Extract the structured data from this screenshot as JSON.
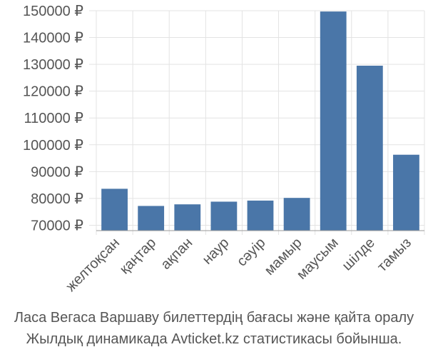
{
  "chart_data": {
    "type": "bar",
    "categories": [
      "желтоқсан",
      "қаңтар",
      "ақпан",
      "наур",
      "сәуір",
      "мамыр",
      "маусым",
      "шілде",
      "тамыз"
    ],
    "values": [
      83600,
      77200,
      77800,
      78800,
      79200,
      80200,
      149700,
      129500,
      96300
    ],
    "y_ticks": [
      70000,
      80000,
      90000,
      100000,
      110000,
      120000,
      130000,
      140000,
      150000
    ],
    "y_tick_labels": [
      "70000 ₽",
      "80000 ₽",
      "90000 ₽",
      "100000 ₽",
      "110000 ₽",
      "120000 ₽",
      "130000 ₽",
      "140000 ₽",
      "150000 ₽"
    ],
    "ylim": [
      68000,
      150000
    ],
    "grid": true,
    "legend": "none",
    "bar_color": "#4a76a8",
    "caption_line1": "Ласа Вегаса Варшаву билеттердің бағасы және қайта оралу",
    "caption_line2": "Жылдық динамикада Avticket.kz статистикасы бойынша."
  }
}
